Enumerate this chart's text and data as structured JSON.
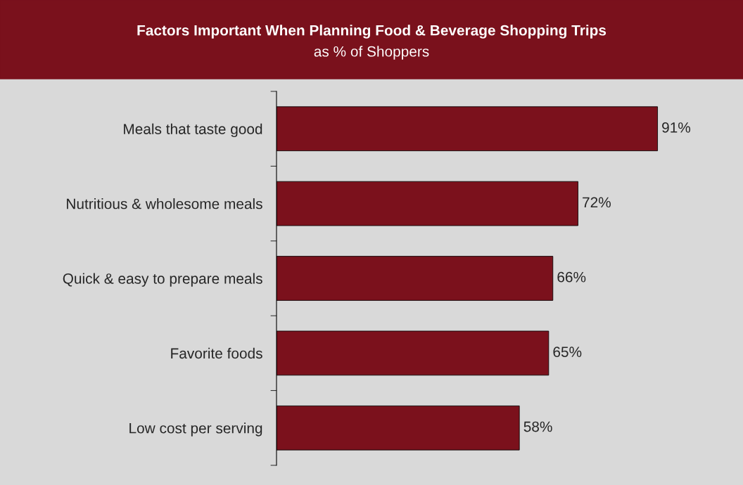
{
  "chart_data": {
    "type": "bar",
    "orientation": "horizontal",
    "title": "Factors Important When Planning Food & Beverage Shopping Trips",
    "subtitle": "as % of Shoppers",
    "categories": [
      "Meals that taste good",
      "Nutritious & wholesome meals",
      "Quick & easy to prepare meals",
      "Favorite foods",
      "Low cost per serving"
    ],
    "values": [
      91,
      72,
      66,
      65,
      58
    ],
    "value_labels": [
      "91%",
      "72%",
      "66%",
      "65%",
      "58%"
    ],
    "color": "#7b111c",
    "tick_labels": "y",
    "grid": false,
    "legend": false
  }
}
